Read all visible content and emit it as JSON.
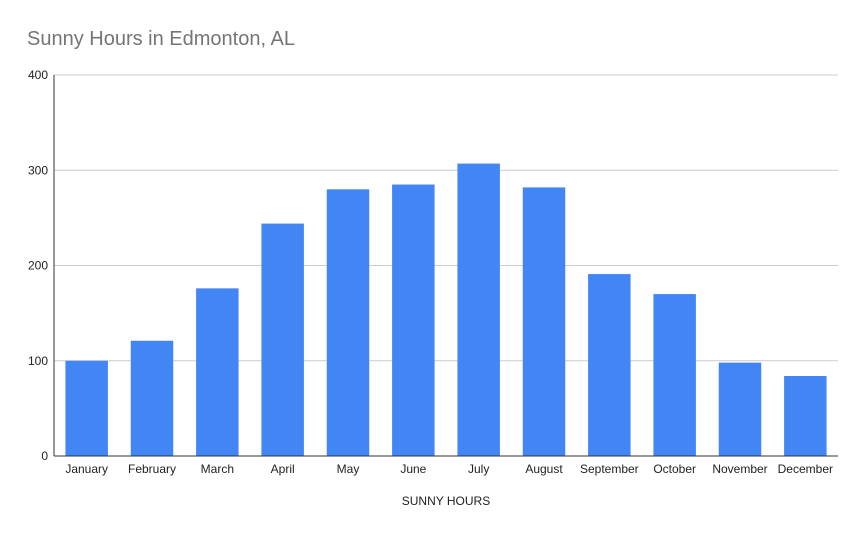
{
  "chart_data": {
    "type": "bar",
    "title": "Sunny Hours in Edmonton, AL",
    "xlabel": "SUNNY HOURS",
    "ylabel": "",
    "ylim": [
      0,
      400
    ],
    "yticks": [
      0,
      100,
      200,
      300,
      400
    ],
    "grid": true,
    "legend": "none",
    "categories": [
      "January",
      "February",
      "March",
      "April",
      "May",
      "June",
      "July",
      "August",
      "September",
      "October",
      "November",
      "December"
    ],
    "values": [
      100,
      121,
      176,
      244,
      280,
      285,
      307,
      282,
      191,
      170,
      98,
      84
    ],
    "bar_color": "#4285f4",
    "grid_color": "#cccccc",
    "axis_color": "#333333"
  }
}
